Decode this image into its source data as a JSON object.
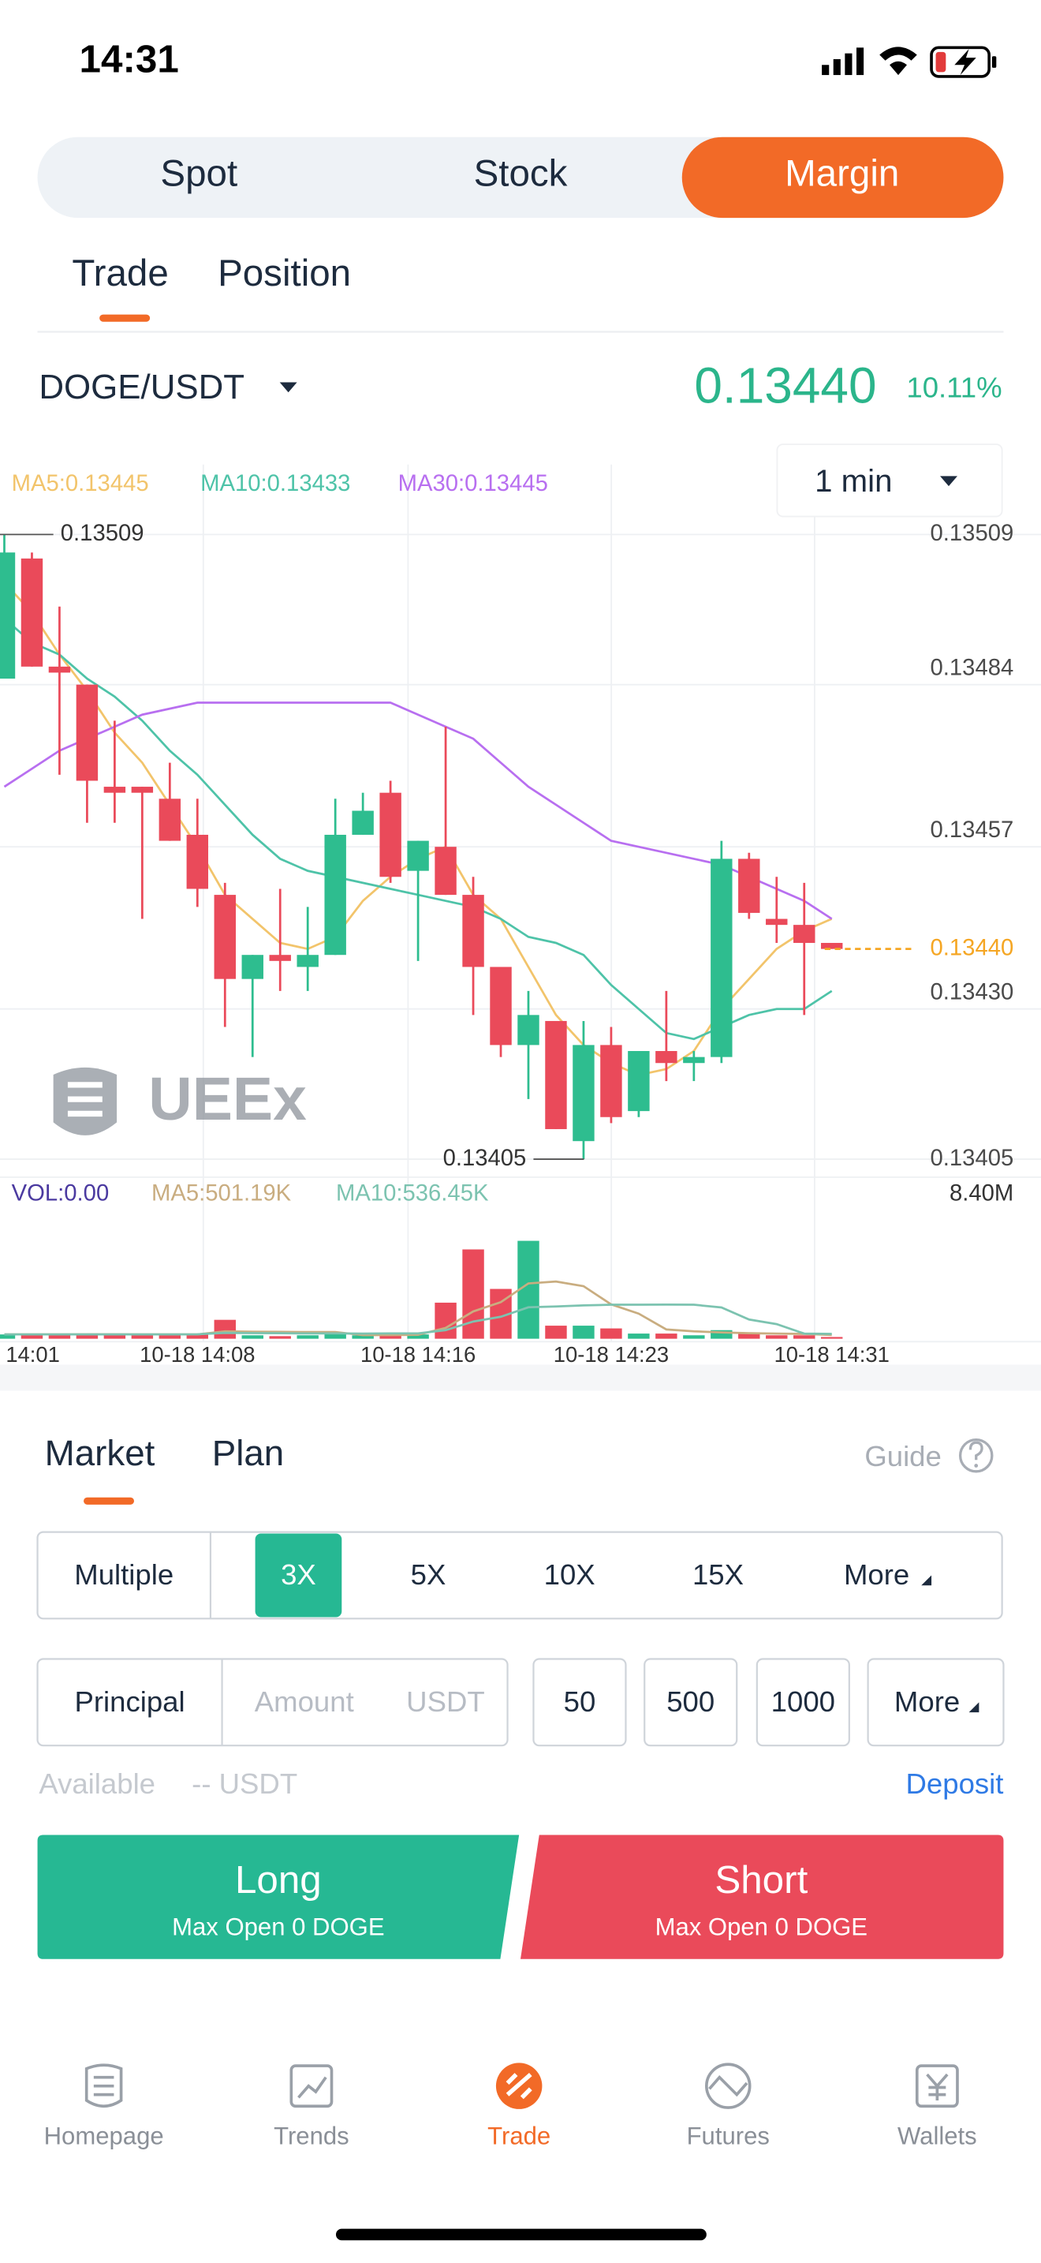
{
  "status_bar": {
    "time": "14:31"
  },
  "market_tabs": [
    "Spot",
    "Stock",
    "Margin"
  ],
  "view_tabs": [
    "Trade",
    "Position"
  ],
  "ticker": {
    "pair": "DOGE/USDT",
    "last_price": "0.13440",
    "change": "10.11%"
  },
  "chart_data": {
    "type": "candlestick",
    "interval": "1 min",
    "categories": [
      "14:01",
      null,
      null,
      null,
      null,
      null,
      null,
      "10-18 14:08",
      null,
      null,
      null,
      null,
      null,
      null,
      null,
      "10-18 14:16",
      null,
      null,
      null,
      null,
      null,
      null,
      "10-18 14:23",
      null,
      null,
      null,
      null,
      null,
      null,
      null,
      "10-18 14:31"
    ],
    "open": [
      0.13485,
      0.13505,
      0.13487,
      0.13484,
      0.13467,
      0.13467,
      0.13465,
      0.13459,
      0.13449,
      0.13435,
      0.13439,
      0.13437,
      0.13439,
      0.13459,
      0.13466,
      0.13453,
      0.13457,
      0.13449,
      0.13437,
      0.13424,
      0.13428,
      0.13408,
      0.13424,
      0.13413,
      0.13423,
      0.13421,
      0.13422,
      0.13455,
      0.13445,
      0.13444,
      0.13441
    ],
    "high": [
      0.13509,
      0.13506,
      0.13497,
      0.13484,
      0.13478,
      0.13467,
      0.13471,
      0.13465,
      0.13451,
      0.13439,
      0.1345,
      0.13447,
      0.13465,
      0.13466,
      0.13468,
      0.13458,
      0.13477,
      0.13452,
      0.13437,
      0.13433,
      0.13428,
      0.13428,
      0.13427,
      0.13423,
      0.13433,
      0.13423,
      0.13458,
      0.13456,
      0.13452,
      0.13451,
      0.13441
    ],
    "low": [
      0.13485,
      0.13487,
      0.13469,
      0.13461,
      0.13461,
      0.13445,
      0.13458,
      0.13447,
      0.13427,
      0.13422,
      0.13433,
      0.13433,
      0.13439,
      0.13459,
      0.13451,
      0.13438,
      0.13449,
      0.13429,
      0.13422,
      0.13415,
      0.1341,
      0.13405,
      0.13411,
      0.13412,
      0.13418,
      0.13418,
      0.13421,
      0.13445,
      0.13441,
      0.13429,
      0.1344
    ],
    "close": [
      0.13506,
      0.13487,
      0.13486,
      0.13468,
      0.13466,
      0.13466,
      0.13458,
      0.1345,
      0.13435,
      0.13439,
      0.13438,
      0.13439,
      0.13459,
      0.13463,
      0.13452,
      0.13458,
      0.13449,
      0.13437,
      0.13424,
      0.13429,
      0.1341,
      0.13424,
      0.13412,
      0.13423,
      0.13421,
      0.13422,
      0.13455,
      0.13446,
      0.13444,
      0.13441,
      0.1344
    ],
    "up_color": "#2ebd8f",
    "down_color": "#ea4a5a",
    "series": [
      {
        "name": "MA5:0.13445",
        "color": "#f2c46b",
        "values": [
          0.13501,
          0.13496,
          0.13489,
          0.13483,
          0.13476,
          0.13471,
          0.13464,
          0.13457,
          0.13449,
          0.13445,
          0.13441,
          0.1344,
          0.13442,
          0.13448,
          0.13452,
          0.13455,
          0.13457,
          0.13449,
          0.13445,
          0.13437,
          0.13429,
          0.13424,
          0.13421,
          0.13419,
          0.1342,
          0.13423,
          0.1343,
          0.13435,
          0.1344,
          0.13443,
          0.13445
        ]
      },
      {
        "name": "MA10:0.13433",
        "color": "#4ec3a8",
        "values": [
          0.13495,
          0.13491,
          0.13489,
          0.13485,
          0.13482,
          0.13478,
          0.13473,
          0.13469,
          0.13464,
          0.13459,
          0.13455,
          0.13453,
          0.13452,
          0.13451,
          0.1345,
          0.13449,
          0.13448,
          0.13447,
          0.13445,
          0.13442,
          0.13441,
          0.13439,
          0.13434,
          0.1343,
          0.13426,
          0.13425,
          0.13427,
          0.13429,
          0.1343,
          0.1343,
          0.13433
        ]
      },
      {
        "name": "MA30:0.13445",
        "color": "#b86ff0",
        "values": [
          0.13467,
          0.1347,
          0.13473,
          0.13475,
          0.13477,
          0.13479,
          0.1348,
          0.13481,
          0.13481,
          0.13481,
          0.13481,
          0.13481,
          0.13481,
          0.13481,
          0.13481,
          0.13479,
          0.13477,
          0.13475,
          0.13471,
          0.13467,
          0.13464,
          0.13461,
          0.13458,
          0.13457,
          0.13456,
          0.13455,
          0.13454,
          0.13452,
          0.1345,
          0.13448,
          0.13445
        ]
      }
    ],
    "ylim": [
      0.13402,
      0.13512
    ],
    "yticks": [
      0.13509,
      0.13484,
      0.13457,
      {
        "value": 0.1343,
        "label": "0.13430"
      },
      0.13405
    ],
    "grid": true,
    "high_marker": 0.13509,
    "low_marker": 0.13405,
    "last_price": {
      "value": 0.1344,
      "label": "0.13440"
    },
    "volume": {
      "name": "VOL:0.00",
      "values": [
        0.25,
        0.3,
        0.2,
        0.25,
        0.3,
        0.2,
        0.3,
        0.25,
        1.1,
        0.2,
        0.15,
        0.2,
        0.3,
        0.2,
        0.2,
        0.25,
        2.1,
        5.2,
        2.9,
        5.7,
        0.76,
        0.76,
        0.6,
        0.3,
        0.3,
        0.2,
        0.5,
        0.3,
        0.2,
        0.2,
        0.1
      ],
      "ylim": [
        0,
        8.4
      ],
      "yticks": [
        {
          "value": 8.4,
          "label": "8.40M"
        }
      ],
      "series": [
        {
          "name": "MA5:501.19K",
          "color": "#c9ad80",
          "values": [
            0.25,
            0.25,
            0.25,
            0.26,
            0.26,
            0.25,
            0.25,
            0.25,
            0.43,
            0.41,
            0.4,
            0.39,
            0.39,
            0.21,
            0.21,
            0.23,
            0.63,
            1.59,
            2.13,
            3.22,
            3.33,
            3.06,
            2.0,
            1.46,
            0.54,
            0.43,
            0.37,
            0.32,
            0.3,
            0.28,
            0.22
          ]
        },
        {
          "name": "MA10:536.45K",
          "color": "#7cc3b0",
          "values": [
            0.25,
            0.25,
            0.25,
            0.25,
            0.25,
            0.25,
            0.25,
            0.26,
            0.34,
            0.33,
            0.32,
            0.31,
            0.31,
            0.3,
            0.31,
            0.31,
            0.5,
            1.0,
            1.28,
            1.83,
            1.88,
            1.94,
            1.98,
            1.98,
            1.99,
            1.98,
            1.82,
            1.12,
            0.85,
            0.3,
            0.28
          ]
        }
      ]
    }
  },
  "watermark": "UEEx",
  "order_tabs": [
    "Market",
    "Plan"
  ],
  "guide": "Guide",
  "leverage": {
    "label": "Multiple",
    "options": [
      "3X",
      "5X",
      "10X",
      "15X"
    ],
    "more": "More"
  },
  "principal": {
    "label": "Principal",
    "placeholder": "Amount",
    "unit": "USDT",
    "presets": [
      "50",
      "500",
      "1000"
    ],
    "more": "More"
  },
  "available": {
    "label": "Available",
    "value": "-- USDT",
    "deposit": "Deposit"
  },
  "long": {
    "label": "Long",
    "max_open": "Max Open 0 DOGE"
  },
  "short": {
    "label": "Short",
    "max_open": "Max Open 0 DOGE"
  },
  "nav": [
    "Homepage",
    "Trends",
    "Trade",
    "Futures",
    "Wallets"
  ]
}
